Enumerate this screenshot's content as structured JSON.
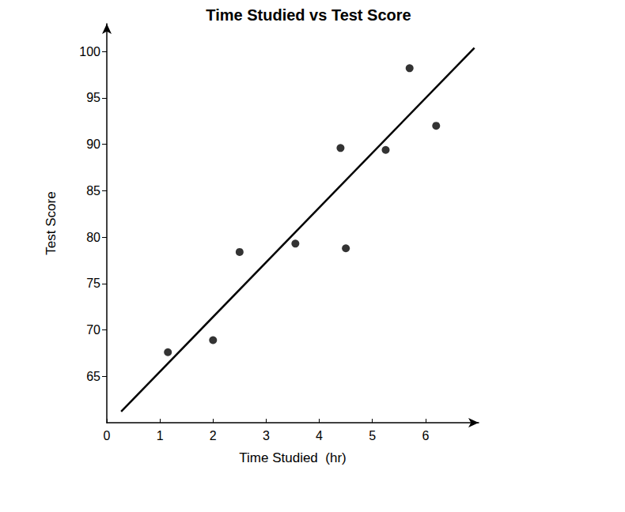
{
  "chart_data": {
    "type": "scatter",
    "title": "Time Studied vs Test Score",
    "x_label": "Time Studied  (hr)",
    "y_label": "Test Score",
    "series": [
      {
        "type": "scatter",
        "color": "#000000",
        "marker": "circle",
        "x": [
          1.15,
          2.0,
          2.5,
          3.55,
          4.4,
          4.5,
          5.25,
          5.7,
          6.2
        ],
        "values": [
          67.6,
          68.9,
          78.4,
          79.3,
          89.6,
          78.8,
          89.4,
          98.2,
          92.0
        ]
      },
      {
        "type": "line",
        "color": "#000000",
        "line_style": "solid",
        "x": [
          0.27,
          6.92
        ],
        "values": [
          61.2,
          100.4
        ]
      }
    ],
    "xlim": [
      0,
      7
    ],
    "xticks": [
      0,
      1,
      2,
      3,
      4,
      5,
      6
    ],
    "ylim": [
      60,
      103
    ],
    "yticks": [
      65,
      70,
      75,
      80,
      85,
      90,
      95,
      100
    ],
    "grid": false
  }
}
